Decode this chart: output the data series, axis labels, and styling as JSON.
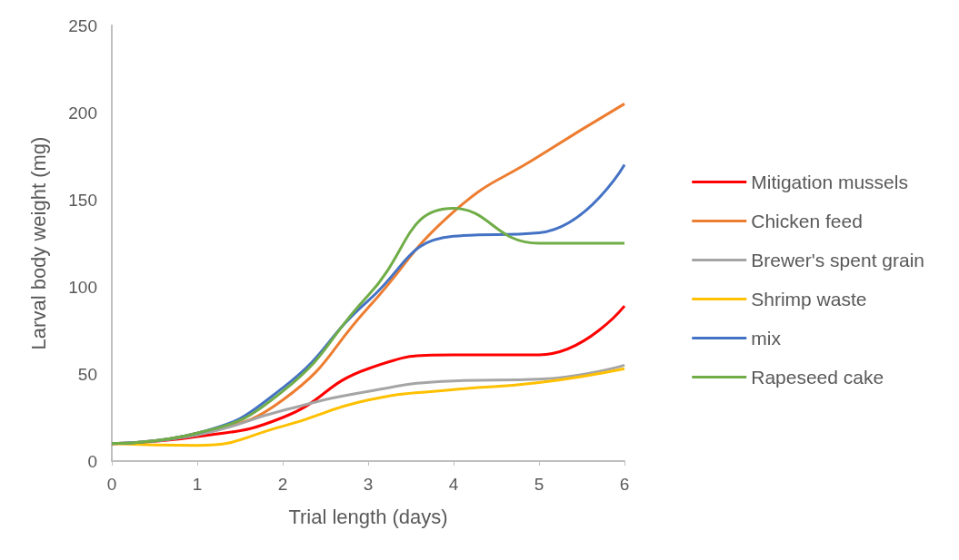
{
  "chart_data": {
    "type": "line",
    "xlabel": "Trial length (days)",
    "ylabel": "Larval body weight (mg)",
    "x": [
      0,
      1,
      2,
      3,
      4,
      5,
      6
    ],
    "xlim": [
      0,
      6
    ],
    "xticks": [
      0,
      1,
      2,
      3,
      4,
      5,
      6
    ],
    "ylim": [
      0,
      250
    ],
    "yticks": [
      0,
      50,
      100,
      150,
      200,
      250
    ],
    "grid": false,
    "legend": "right",
    "marker": "none",
    "line_style": "solid",
    "series": [
      {
        "name": "Mitigation mussels",
        "color": "#ff0000",
        "values": [
          10,
          14,
          25,
          53,
          61,
          61,
          89
        ]
      },
      {
        "name": "Chicken feed",
        "color": "#ed7d31",
        "values": [
          10,
          16,
          35,
          88,
          143,
          175,
          205
        ]
      },
      {
        "name": "Brewer's spent grain",
        "color": "#a5a5a5",
        "values": [
          10,
          15,
          29,
          40,
          46,
          47,
          55
        ]
      },
      {
        "name": "Shrimp waste",
        "color": "#ffc000",
        "values": [
          10,
          9,
          20,
          35,
          41,
          45,
          53
        ]
      },
      {
        "name": "mix",
        "color": "#4472c4",
        "values": [
          10,
          16,
          42,
          92,
          129,
          131,
          170
        ]
      },
      {
        "name": "Rapeseed cake",
        "color": "#70ad47",
        "values": [
          10,
          16,
          40,
          95,
          145,
          125,
          125
        ]
      }
    ]
  }
}
